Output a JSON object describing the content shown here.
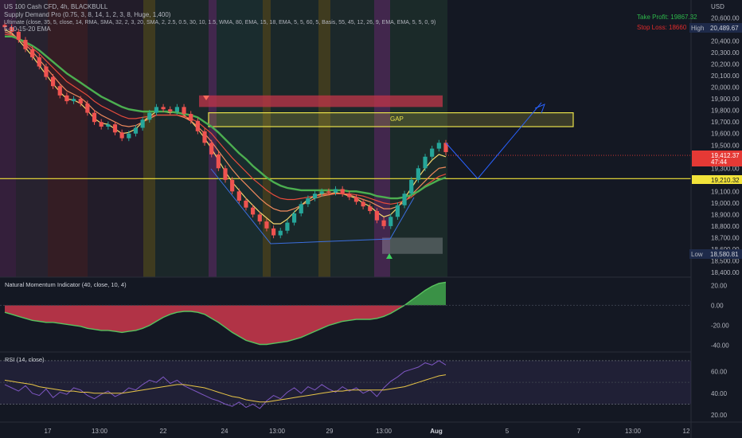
{
  "header": {
    "symbol_line": "US 100 Cash CFD, 4h, BLACKBULL",
    "indicator_lines": [
      "Supply Demand Pro (0.75, 3, 8, 14, 1, 2, 3, 8, Huge, 1,400)",
      "Ultimate (close, 35, 5, close, 14, RMA, SMA, 32, 2, 3, 20, SMA, 2, 2.5, 0.5, 30, 10, 1.5, WMA, 80, EMA, 15, 18, EMA, 5, 5, 60, 5, Basis, 55, 45, 12, 26, 9, EMA, EMA, 5, 5, 0, 9)",
      "5-10-15-20 EMA"
    ]
  },
  "colors": {
    "background": "#141823",
    "bull": "#26a69a",
    "bear": "#ef5350",
    "gap_box": "#e8e04a",
    "level_line": "#f2e33a",
    "projection": "#2962ff",
    "take_profit": "#2eb84b",
    "stop_loss": "#e02b2b"
  },
  "chart_data": [
    {
      "type": "line",
      "panel": "price",
      "title": "US 100 Cash CFD, 4h, BLACKBULL",
      "currency": "USD",
      "ylim": [
        18400,
        20700
      ],
      "y_ticks": [
        "20,600.00",
        "20,500.00",
        "20,400.00",
        "20,300.00",
        "20,200.00",
        "20,100.00",
        "20,000.00",
        "19,900.00",
        "19,800.00",
        "19,700.00",
        "19,600.00",
        "19,500.00",
        "19,400.00",
        "19,300.00",
        "19,200.00",
        "19,100.00",
        "19,000.00",
        "18,900.00",
        "18,800.00",
        "18,700.00",
        "18,600.00",
        "18,500.00",
        "18,400.00"
      ],
      "x_labels": [
        "17",
        "13:00",
        "22",
        "24",
        "13:00",
        "29",
        "13:00",
        "Aug",
        "5",
        "7",
        "13:00",
        "12"
      ],
      "series": [
        {
          "kind": "candles",
          "values": [
            20520,
            20480,
            20410,
            20330,
            20260,
            20180,
            20090,
            20010,
            19930,
            19880,
            19900,
            19860,
            19780,
            19700,
            19660,
            19680,
            19610,
            19560,
            19600,
            19650,
            19720,
            19780,
            19830,
            19810,
            19790,
            19830,
            19770,
            19710,
            19620,
            19520,
            19420,
            19300,
            19200,
            19100,
            19020,
            18960,
            18900,
            18840,
            18780,
            18720,
            18760,
            18830,
            18910,
            18990,
            19040,
            19080,
            19100,
            19090,
            19120,
            19080,
            19050,
            19010,
            18970,
            18930,
            18850,
            18800,
            18880,
            18980,
            19080,
            19200,
            19300,
            19400,
            19470,
            19520,
            19440
          ]
        },
        {
          "name": "EMA 5",
          "values": [
            20500,
            20470,
            20410,
            20340,
            20270,
            20190,
            20110,
            20030,
            19960,
            19900,
            19890,
            19860,
            19800,
            19730,
            19690,
            19680,
            19640,
            19600,
            19610,
            19640,
            19700,
            19750,
            19790,
            19790,
            19780,
            19790,
            19760,
            19710,
            19640,
            19560,
            19470,
            19370,
            19270,
            19180,
            19110,
            19040,
            18980,
            18920,
            18870,
            18820,
            18820,
            18860,
            18920,
            18980,
            19030,
            19060,
            19080,
            19080,
            19090,
            19080,
            19060,
            19040,
            19000,
            18970,
            18920,
            18880,
            18900,
            18960,
            19040,
            19130,
            19220,
            19300,
            19370,
            19420,
            19400
          ]
        },
        {
          "name": "EMA 10",
          "values": [
            20480,
            20460,
            20420,
            20370,
            20310,
            20240,
            20170,
            20100,
            20030,
            19970,
            19940,
            19910,
            19860,
            19800,
            19760,
            19730,
            19700,
            19670,
            19660,
            19670,
            19700,
            19730,
            19760,
            19760,
            19760,
            19760,
            19740,
            19710,
            19660,
            19600,
            19530,
            19450,
            19370,
            19290,
            19220,
            19160,
            19100,
            19040,
            18990,
            18950,
            18930,
            18930,
            18950,
            18980,
            19010,
            19040,
            19060,
            19070,
            19080,
            19080,
            19070,
            19050,
            19030,
            19010,
            18980,
            18950,
            18950,
            18970,
            19010,
            19070,
            19130,
            19190,
            19250,
            19300,
            19310
          ]
        },
        {
          "name": "EMA 15",
          "values": [
            20460,
            20450,
            20420,
            20380,
            20340,
            20290,
            20230,
            20170,
            20110,
            20050,
            20010,
            19970,
            19930,
            19880,
            19840,
            19810,
            19780,
            19750,
            19730,
            19730,
            19740,
            19750,
            19760,
            19760,
            19760,
            19760,
            19750,
            19730,
            19700,
            19650,
            19600,
            19530,
            19460,
            19390,
            19330,
            19270,
            19210,
            19160,
            19110,
            19070,
            19040,
            19030,
            19030,
            19040,
            19050,
            19060,
            19070,
            19080,
            19080,
            19080,
            19080,
            19070,
            19060,
            19040,
            19020,
            19000,
            18990,
            19000,
            19020,
            19050,
            19100,
            19150,
            19190,
            19230,
            19250
          ]
        },
        {
          "name": "EMA 20",
          "values": [
            20440,
            20440,
            20420,
            20390,
            20360,
            20320,
            20270,
            20220,
            20170,
            20120,
            20080,
            20040,
            20000,
            19960,
            19920,
            19890,
            19860,
            19830,
            19810,
            19800,
            19790,
            19790,
            19790,
            19790,
            19790,
            19780,
            19770,
            19760,
            19740,
            19700,
            19660,
            19610,
            19550,
            19490,
            19430,
            19380,
            19320,
            19270,
            19220,
            19180,
            19150,
            19130,
            19120,
            19110,
            19110,
            19110,
            19110,
            19110,
            19110,
            19110,
            19100,
            19100,
            19090,
            19080,
            19060,
            19050,
            19040,
            19040,
            19050,
            19070,
            19100,
            19140,
            19170,
            19200,
            19220
          ]
        }
      ],
      "annotations": {
        "gap_label": "GAP",
        "take_profit_label": "Take Profit: 19867.32",
        "stop_loss_label": "Stop Loss: 18660",
        "high_label": "High",
        "high_value": "20,489.67",
        "current_price": "19,412.37",
        "countdown": "47:44",
        "level_value": "19,210.32",
        "low_label": "Low",
        "low_value": "18,580.81",
        "gap_top": 19780,
        "gap_bottom": 19660,
        "supply_zone": [
          19830,
          19930
        ],
        "demand_zone": [
          18560,
          18700
        ],
        "level": 19210.32
      },
      "grid": false
    },
    {
      "type": "area",
      "panel": "momentum",
      "title": "Natural Momentum Indicator (40, close, 10, 4)",
      "ylim": [
        -45,
        25
      ],
      "y_ticks": [
        "20.00",
        "0.00",
        "-20.00",
        "-40.00"
      ],
      "values": [
        -7,
        -9,
        -11,
        -13,
        -15,
        -16,
        -17,
        -17,
        -18,
        -19,
        -20,
        -21,
        -23,
        -24,
        -25,
        -25,
        -26,
        -27,
        -26,
        -25,
        -23,
        -20,
        -16,
        -12,
        -9,
        -7,
        -6,
        -6,
        -7,
        -9,
        -13,
        -17,
        -22,
        -27,
        -31,
        -35,
        -37,
        -39,
        -39,
        -38,
        -37,
        -36,
        -34,
        -32,
        -29,
        -26,
        -23,
        -20,
        -18,
        -16,
        -15,
        -14,
        -14,
        -14,
        -13,
        -11,
        -8,
        -4,
        0,
        5,
        10,
        15,
        19,
        22,
        23
      ]
    },
    {
      "type": "line",
      "panel": "rsi",
      "title": "RSI (14, close)",
      "ylim": [
        15,
        75
      ],
      "y_ticks": [
        "60.00",
        "40.00",
        "20.00"
      ],
      "series": [
        {
          "name": "RSI",
          "values": [
            48,
            45,
            42,
            47,
            40,
            38,
            44,
            36,
            41,
            39,
            45,
            43,
            38,
            35,
            39,
            42,
            37,
            40,
            45,
            43,
            48,
            52,
            50,
            55,
            49,
            52,
            47,
            44,
            41,
            38,
            35,
            33,
            30,
            28,
            32,
            27,
            30,
            26,
            33,
            38,
            35,
            41,
            45,
            40,
            46,
            43,
            48,
            44,
            41,
            46,
            42,
            45,
            40,
            43,
            37,
            45,
            51,
            55,
            60,
            62,
            64,
            68,
            66,
            70,
            66
          ]
        },
        {
          "name": "RSI MA",
          "values": [
            52,
            51,
            50,
            49,
            48,
            46,
            45,
            44,
            43,
            42,
            42,
            41,
            41,
            40,
            40,
            40,
            40,
            40,
            41,
            42,
            43,
            44,
            45,
            46,
            47,
            48,
            48,
            47,
            46,
            45,
            43,
            41,
            39,
            37,
            36,
            34,
            33,
            32,
            32,
            33,
            34,
            35,
            36,
            37,
            38,
            39,
            40,
            41,
            42,
            42,
            43,
            43,
            43,
            43,
            43,
            43,
            44,
            45,
            46,
            48,
            50,
            52,
            54,
            56,
            57
          ]
        }
      ]
    }
  ]
}
